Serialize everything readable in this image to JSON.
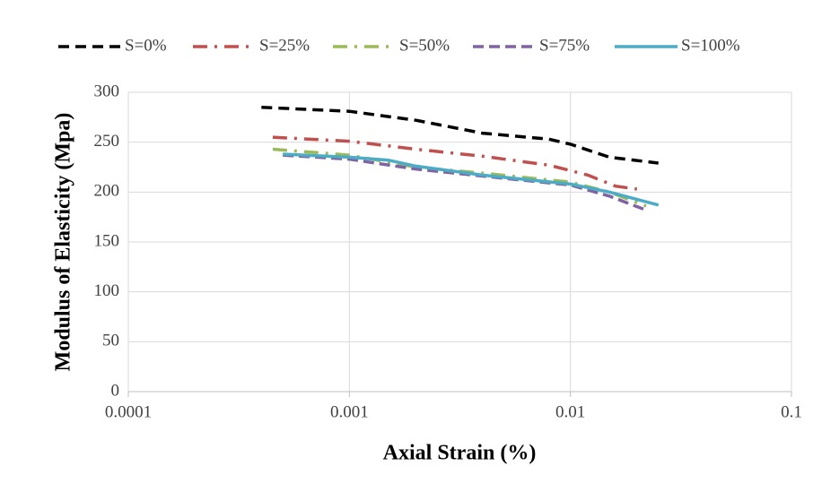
{
  "chart_data": {
    "type": "line",
    "xlabel": "Axial Strain (%)",
    "ylabel": "Modulus of Elasticity (Mpa)",
    "xscale": "log",
    "xlim": [
      0.0001,
      0.1
    ],
    "xticks": [
      0.0001,
      0.001,
      0.01,
      0.1
    ],
    "ylim": [
      0,
      300
    ],
    "yticks": [
      0,
      50,
      100,
      150,
      200,
      250,
      300
    ],
    "grid": true,
    "legend": "top",
    "series": [
      {
        "name": "S=0%",
        "color": "#000000",
        "dash": "12,7",
        "x": [
          0.0004,
          0.001,
          0.002,
          0.004,
          0.008,
          0.01,
          0.015,
          0.025
        ],
        "values": [
          285,
          281,
          272,
          259,
          253,
          248,
          235,
          229
        ]
      },
      {
        "name": "S=25%",
        "color": "#c0504d",
        "dash": "16,8,3,8",
        "x": [
          0.00045,
          0.001,
          0.002,
          0.004,
          0.008,
          0.012,
          0.016,
          0.02
        ],
        "values": [
          255,
          251,
          243,
          236,
          227,
          217,
          206,
          203
        ]
      },
      {
        "name": "S=50%",
        "color": "#9bbb59",
        "dash": "16,8,3,8",
        "x": [
          0.00045,
          0.001,
          0.002,
          0.004,
          0.01,
          0.015,
          0.022
        ],
        "values": [
          243,
          237,
          225,
          219,
          210,
          200,
          186
        ]
      },
      {
        "name": "S=75%",
        "color": "#8064a2",
        "dash": "12,6",
        "x": [
          0.0005,
          0.001,
          0.002,
          0.004,
          0.01,
          0.015,
          0.022
        ],
        "values": [
          237,
          233,
          223,
          216,
          207,
          196,
          182
        ]
      },
      {
        "name": "S=100%",
        "color": "#4bacc6",
        "dash": "",
        "x": [
          0.0005,
          0.001,
          0.0015,
          0.002,
          0.004,
          0.01,
          0.015,
          0.025
        ],
        "values": [
          238,
          235,
          232,
          226,
          217,
          208,
          200,
          187
        ]
      }
    ]
  }
}
